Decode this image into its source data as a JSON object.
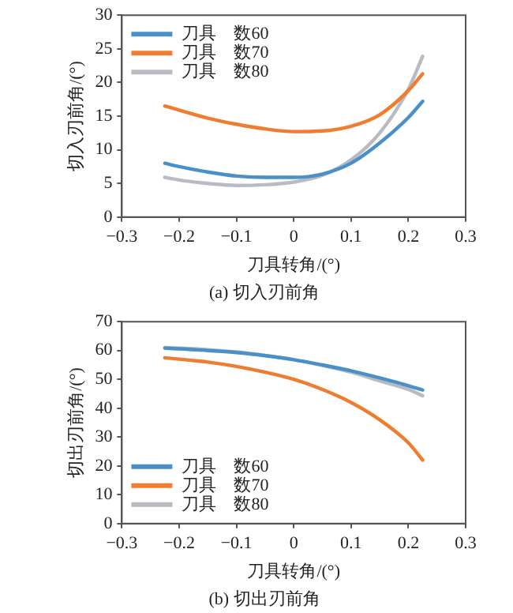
{
  "chart_data": [
    {
      "type": "line",
      "title": "(a) 切入刃前角",
      "xlabel": "刀具转角/(°)",
      "ylabel": "切入刃前角/(°)",
      "xlim": [
        -0.3,
        0.3
      ],
      "xticks": [
        {
          "value": -0.3,
          "label": "−0.3"
        },
        {
          "value": -0.2,
          "label": "−0.2"
        },
        {
          "value": -0.1,
          "label": "−0.1"
        },
        0,
        0.1,
        0.2,
        0.3
      ],
      "ylim": [
        0,
        30
      ],
      "yticks": [
        0,
        5,
        10,
        15,
        20,
        25,
        30
      ],
      "grid": false,
      "legend": "top left",
      "marker": "none",
      "line_style": "solid",
      "x": [
        -0.225,
        -0.2,
        -0.15,
        -0.1,
        -0.05,
        0,
        0.05,
        0.1,
        0.15,
        0.2,
        0.225
      ],
      "series": [
        {
          "name": "刀具　数60",
          "color": "#4a90c8",
          "values": [
            8.0,
            7.5,
            6.7,
            6.1,
            5.9,
            5.9,
            6.4,
            8.0,
            11.0,
            14.8,
            17.2
          ]
        },
        {
          "name": "刀具　数70",
          "color": "#ee7d31",
          "values": [
            16.5,
            15.9,
            14.7,
            13.8,
            13.1,
            12.7,
            12.8,
            13.5,
            15.2,
            18.8,
            21.3
          ]
        },
        {
          "name": "刀具　数80",
          "color": "#b8bcc2",
          "values": [
            5.9,
            5.5,
            5.0,
            4.7,
            4.8,
            5.2,
            6.2,
            8.5,
            12.5,
            19.0,
            23.9
          ]
        }
      ]
    },
    {
      "type": "line",
      "title": "(b) 切出刃前角",
      "xlabel": "刀具转角/(°)",
      "ylabel": "切出刃前角/(°)",
      "xlim": [
        -0.3,
        0.3
      ],
      "xticks": [
        {
          "value": -0.3,
          "label": "−0.3"
        },
        {
          "value": -0.2,
          "label": "−0.2"
        },
        {
          "value": -0.1,
          "label": "−0.1"
        },
        0,
        0.1,
        0.2,
        0.3
      ],
      "ylim": [
        0,
        70
      ],
      "yticks": [
        0,
        10,
        20,
        30,
        40,
        50,
        60,
        70
      ],
      "grid": false,
      "legend": "bottom left",
      "marker": "none",
      "line_style": "solid",
      "x": [
        -0.225,
        -0.2,
        -0.15,
        -0.1,
        -0.05,
        0,
        0.05,
        0.1,
        0.15,
        0.2,
        0.225
      ],
      "series": [
        {
          "name": "刀具　数60",
          "color": "#4a90c8",
          "values": [
            60.8,
            60.6,
            60.0,
            59.3,
            58.2,
            56.8,
            55.0,
            53.0,
            50.5,
            47.8,
            46.3
          ]
        },
        {
          "name": "刀具　数70",
          "color": "#ee7d31",
          "values": [
            57.5,
            57.0,
            56.0,
            54.5,
            52.5,
            50.0,
            46.5,
            42.0,
            36.0,
            28.0,
            22.0
          ]
        },
        {
          "name": "刀具　数80",
          "color": "#b8bcc2",
          "values": [
            61.0,
            60.8,
            60.3,
            59.5,
            58.3,
            56.8,
            54.8,
            52.5,
            49.5,
            46.5,
            44.3
          ]
        }
      ]
    }
  ]
}
